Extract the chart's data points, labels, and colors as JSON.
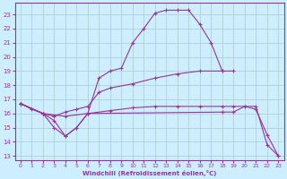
{
  "xlabel": "Windchill (Refroidissement éolien,°C)",
  "background_color": "#cceeff",
  "grid_color": "#aacccc",
  "line_color": "#993399",
  "x_ticks": [
    0,
    1,
    2,
    3,
    4,
    5,
    6,
    7,
    8,
    9,
    10,
    11,
    12,
    13,
    14,
    15,
    16,
    17,
    18,
    19,
    20,
    21,
    22,
    23
  ],
  "y_ticks": [
    13,
    14,
    15,
    16,
    17,
    18,
    19,
    20,
    21,
    22,
    23
  ],
  "xlim": [
    -0.5,
    23.5
  ],
  "ylim": [
    12.7,
    23.8
  ],
  "series1_x": [
    0,
    1,
    2,
    3,
    4,
    5,
    6,
    7,
    8,
    9,
    10,
    11,
    12,
    13,
    14,
    15,
    16,
    17,
    18
  ],
  "series1_y": [
    16.7,
    16.3,
    16.0,
    15.0,
    14.4,
    15.0,
    16.0,
    18.5,
    19.0,
    19.2,
    21.0,
    22.0,
    23.1,
    23.3,
    23.3,
    23.3,
    22.3,
    21.0,
    19.0
  ],
  "series2_x": [
    0,
    2,
    3,
    4,
    5,
    6,
    7,
    8,
    10,
    12,
    14,
    16,
    18,
    19
  ],
  "series2_y": [
    16.7,
    16.0,
    15.8,
    16.1,
    16.3,
    16.5,
    17.5,
    17.8,
    18.1,
    18.5,
    18.8,
    19.0,
    19.0,
    19.0
  ],
  "series3_x": [
    0,
    2,
    3,
    4,
    5,
    6,
    18,
    19,
    20,
    21,
    22,
    23
  ],
  "series3_y": [
    16.7,
    16.0,
    15.5,
    14.4,
    15.0,
    16.0,
    16.1,
    16.1,
    16.5,
    16.5,
    13.8,
    13.0
  ],
  "series4_x": [
    0,
    2,
    4,
    6,
    8,
    10,
    12,
    14,
    16,
    18,
    19,
    20,
    21,
    22,
    23
  ],
  "series4_y": [
    16.7,
    16.0,
    15.8,
    16.0,
    16.2,
    16.4,
    16.5,
    16.5,
    16.5,
    16.5,
    16.5,
    16.5,
    16.3,
    14.5,
    13.0
  ]
}
